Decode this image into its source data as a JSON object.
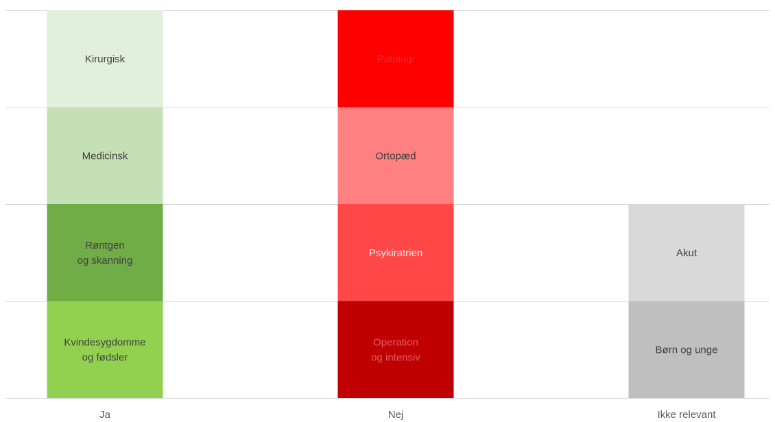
{
  "chart_data": {
    "type": "bar",
    "stacked": true,
    "categories": [
      "Ja",
      "Nej",
      "Ikke relevant"
    ],
    "ylim": [
      0,
      4
    ],
    "grid": true,
    "series": [
      {
        "category": "Ja",
        "segments": [
          {
            "label": [
              "Kvindesygdomme",
              "og fødsler"
            ],
            "value": 1,
            "color": "#92D050",
            "text_color": "#404040"
          },
          {
            "label": [
              "Røntgen",
              "og skanning"
            ],
            "value": 1,
            "color": "#70AD47",
            "text_color": "#404040"
          },
          {
            "label": [
              "Medicinsk"
            ],
            "value": 1,
            "color": "#C5E0B4",
            "text_color": "#404040"
          },
          {
            "label": [
              "Kirurgisk"
            ],
            "value": 1,
            "color": "#E2EFDA",
            "text_color": "#404040"
          }
        ]
      },
      {
        "category": "Nej",
        "segments": [
          {
            "label": [
              "Operation",
              "og intensiv"
            ],
            "value": 1,
            "color": "#C00000",
            "text_color": "#E06060"
          },
          {
            "label": [
              "Psykiratrien"
            ],
            "value": 1,
            "color": "#FF4747",
            "text_color": "#F2F2F2"
          },
          {
            "label": [
              "Ortopæd"
            ],
            "value": 1,
            "color": "#FF8080",
            "text_color": "#404040"
          },
          {
            "label": [
              "Patologi"
            ],
            "value": 1,
            "color": "#FF0000",
            "text_color": "#D93030"
          }
        ]
      },
      {
        "category": "Ikke relevant",
        "segments": [
          {
            "label": [
              "Børn og unge"
            ],
            "value": 1,
            "color": "#BFBFBF",
            "text_color": "#404040"
          },
          {
            "label": [
              "Akut"
            ],
            "value": 1,
            "color": "#D9D9D9",
            "text_color": "#404040"
          }
        ]
      }
    ],
    "gridline_color": "#D9D9D9",
    "axis_label_color": "#595959"
  }
}
